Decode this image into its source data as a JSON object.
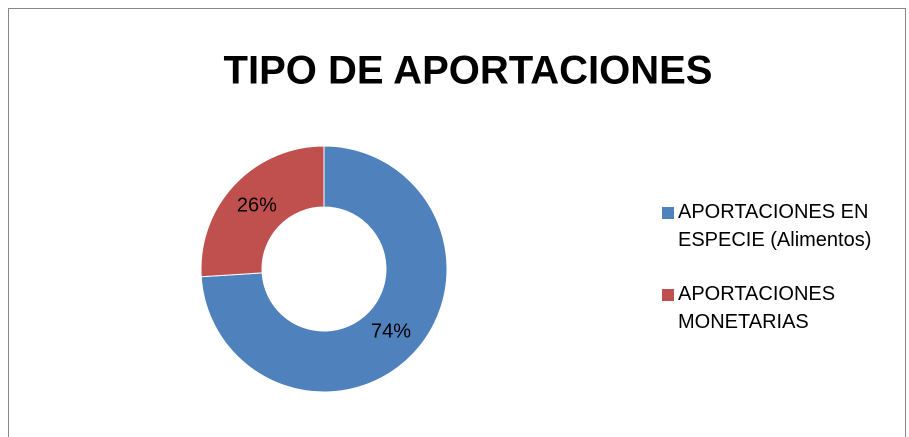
{
  "chart_data": {
    "type": "pie",
    "title": "TIPO DE APORTACIONES",
    "categories": [
      "APORTACIONES EN ESPECIE (Alimentos)",
      "APORTACIONES MONETARIAS"
    ],
    "values": [
      74,
      26
    ],
    "value_labels": [
      "74%",
      "26%"
    ],
    "colors": [
      "#4f81bd",
      "#c0504d"
    ],
    "legend": "right"
  }
}
